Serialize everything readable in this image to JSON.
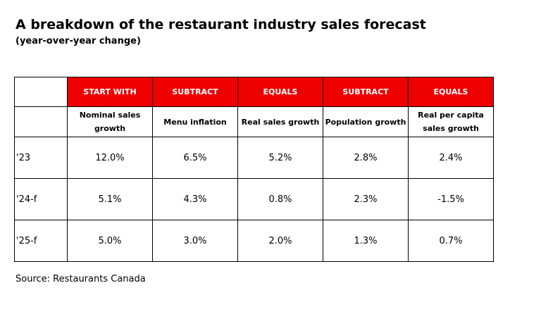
{
  "header": {
    "title": "A breakdown of the restaurant industry sales forecast",
    "subtitle": "(year-over-year change)"
  },
  "table": {
    "operations": [
      "START WITH",
      "SUBTRACT",
      "EQUALS",
      "SUBTRACT",
      "EQUALS"
    ],
    "measures": [
      "Nominal sales growth",
      "Menu inflation",
      "Real sales growth",
      "Population growth",
      "Real per capita sales growth"
    ],
    "rows": [
      {
        "label": "'23",
        "values": [
          "12.0%",
          "6.5%",
          "5.2%",
          "2.8%",
          "2.4%"
        ]
      },
      {
        "label": "'24-f",
        "values": [
          "5.1%",
          "4.3%",
          "0.8%",
          "2.3%",
          "-1.5%"
        ]
      },
      {
        "label": "'25-f",
        "values": [
          "5.0%",
          "3.0%",
          "2.0%",
          "1.3%",
          "0.7%"
        ]
      }
    ]
  },
  "footer": {
    "source": "Source: Restaurants Canada"
  }
}
